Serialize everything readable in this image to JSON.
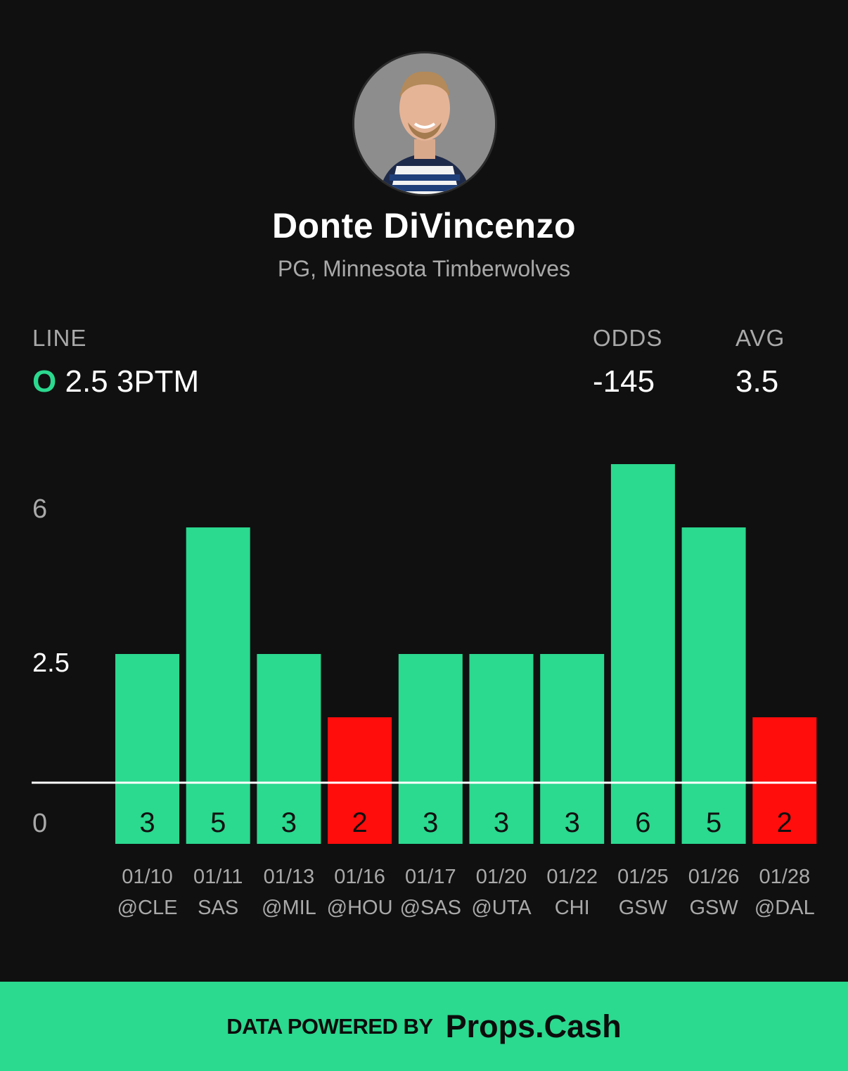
{
  "player": {
    "name": "Donte DiVincenzo",
    "subtitle": "PG, Minnesota Timberwolves",
    "avatar_icon": "player-headshot"
  },
  "stats": {
    "line_label": "LINE",
    "line_side": "O",
    "line_value": "2.5 3PTM",
    "odds_label": "ODDS",
    "odds_value": "-145",
    "avg_label": "AVG",
    "avg_value": "3.5"
  },
  "chart_data": {
    "type": "bar",
    "categories": [
      {
        "date": "01/10",
        "opponent": "@CLE"
      },
      {
        "date": "01/11",
        "opponent": "SAS"
      },
      {
        "date": "01/13",
        "opponent": "@MIL"
      },
      {
        "date": "01/16",
        "opponent": "@HOU"
      },
      {
        "date": "01/17",
        "opponent": "@SAS"
      },
      {
        "date": "01/20",
        "opponent": "@UTA"
      },
      {
        "date": "01/22",
        "opponent": "CHI"
      },
      {
        "date": "01/25",
        "opponent": "GSW"
      },
      {
        "date": "01/26",
        "opponent": "GSW"
      },
      {
        "date": "01/28",
        "opponent": "@DAL"
      }
    ],
    "values": [
      3,
      5,
      3,
      2,
      3,
      3,
      3,
      6,
      5,
      2
    ],
    "line": 2.5,
    "ylim": [
      0,
      6
    ],
    "yticks": [
      "0",
      "2.5",
      "6"
    ],
    "over_color": "#2bd98f",
    "under_color": "#ff0c0c",
    "line_color": "#ffffff"
  },
  "footer": {
    "label": "DATA POWERED BY",
    "brand": "Props.Cash"
  }
}
